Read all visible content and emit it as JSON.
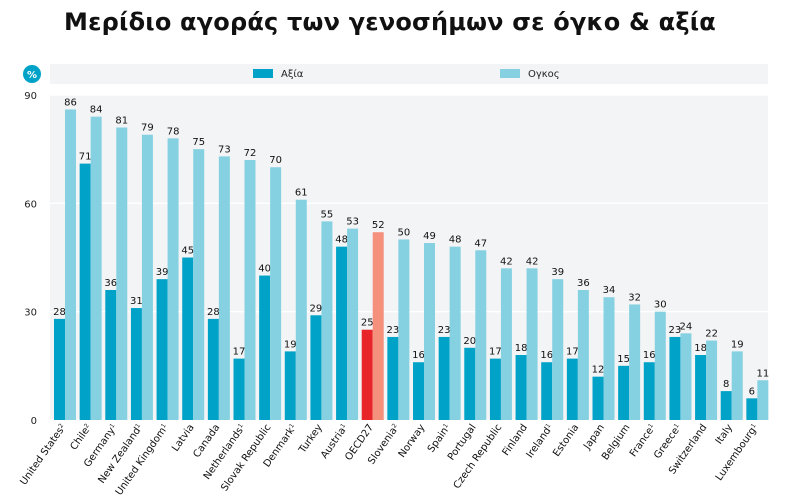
{
  "title": "Μερίδιο αγοράς των γενοσήμων σε όγκο & αξία",
  "chart_data": {
    "type": "bar",
    "unit_badge": "%",
    "ylim": [
      0,
      90
    ],
    "yticks": [
      0,
      30,
      60,
      90
    ],
    "grid": true,
    "legend_position": "top",
    "categories": [
      "United States",
      "Chile",
      "Germany",
      "New Zealand",
      "United Kingdom",
      "Latvia",
      "Canada",
      "Netherlands",
      "Slovak Republic",
      "Denmark",
      "Turkey",
      "Austria",
      "OECD27",
      "Slovenia",
      "Norway",
      "Spain",
      "Portugal",
      "Czech Republic",
      "Finland",
      "Ireland",
      "Estonia",
      "Japan",
      "Belgium",
      "France",
      "Greece",
      "Switzerland",
      "Italy",
      "Luxembourg"
    ],
    "category_marks": [
      "2",
      "2",
      "1",
      "1",
      "1",
      "",
      "",
      "1",
      "",
      "1",
      "",
      "1",
      "",
      "2",
      "",
      "1",
      "",
      "",
      "",
      "1",
      "",
      "",
      "",
      "1",
      "1",
      "",
      "",
      "1"
    ],
    "highlight_category": "OECD27",
    "series": [
      {
        "name": "Αξία",
        "color": "#00a3c7",
        "highlight_color": "#e8262a",
        "values": [
          28,
          71,
          36,
          31,
          39,
          45,
          28,
          17,
          40,
          19,
          29,
          48,
          25,
          23,
          16,
          23,
          20,
          17,
          18,
          16,
          17,
          12,
          15,
          16,
          23,
          18,
          8,
          6
        ]
      },
      {
        "name": "Ογκος",
        "color": "#85d1e2",
        "highlight_color": "#f4907c",
        "values": [
          86,
          84,
          81,
          79,
          78,
          75,
          73,
          72,
          70,
          61,
          55,
          53,
          52,
          50,
          49,
          48,
          47,
          42,
          42,
          39,
          36,
          34,
          32,
          30,
          24,
          22,
          19,
          11
        ]
      }
    ]
  }
}
